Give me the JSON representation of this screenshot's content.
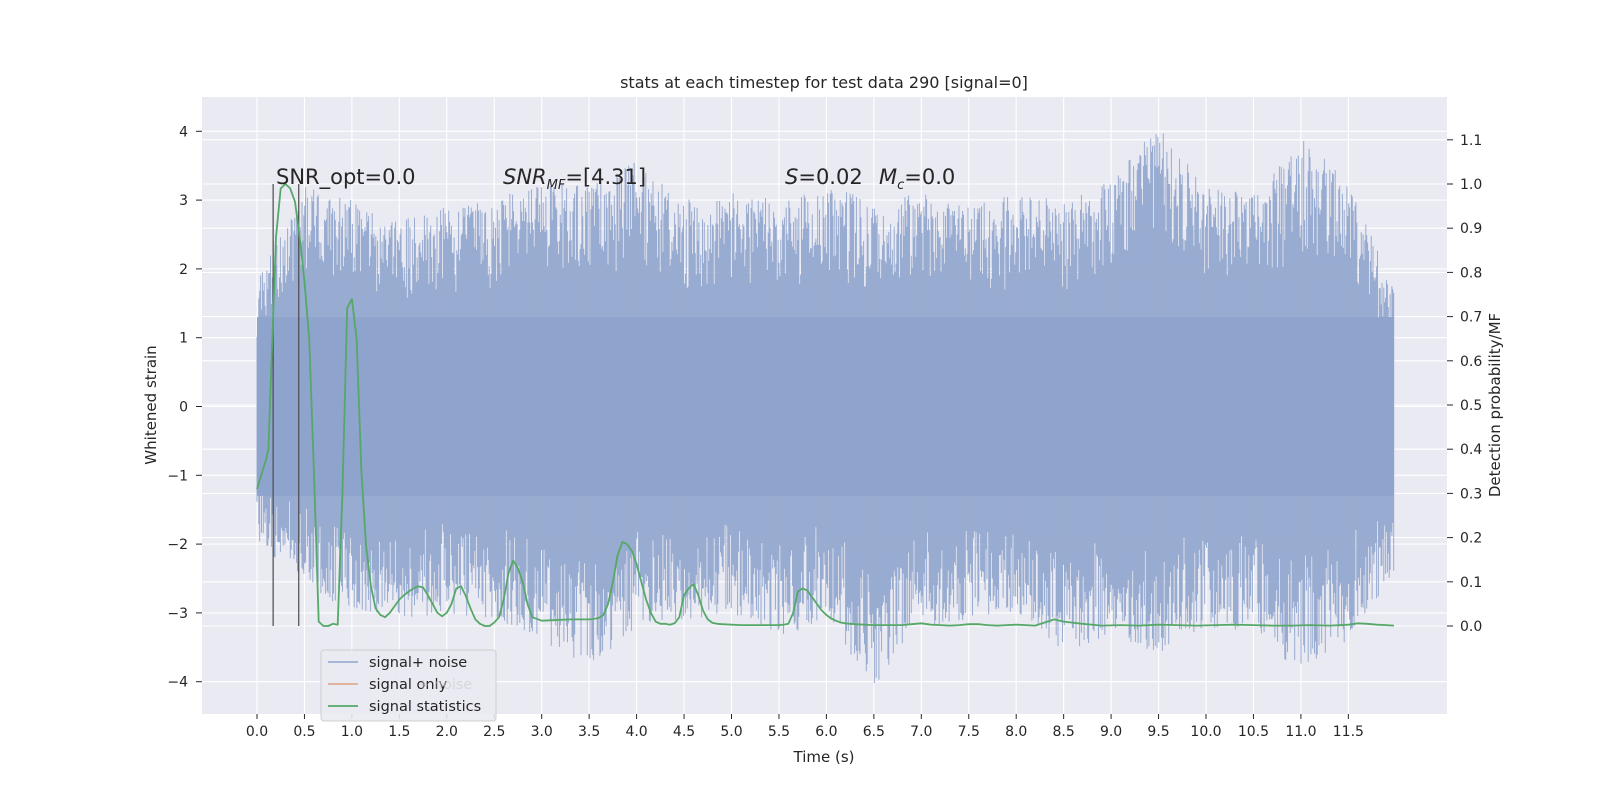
{
  "chart_data": {
    "type": "line",
    "title": "stats at each timestep for test data 290 [signal=0]",
    "xlabel": "Time (s)",
    "ylabel": "Whitened strain",
    "ylabel_right": "Detection probability/MF",
    "xlim": [
      -0.5,
      12.6
    ],
    "ylim_left": [
      -4.45,
      4.45
    ],
    "ylim_right": [
      -0.2,
      1.19
    ],
    "x_ticks": [
      "0.0",
      "0.5",
      "1.0",
      "1.5",
      "2.0",
      "2.5",
      "3.0",
      "3.5",
      "4.0",
      "4.5",
      "5.0",
      "5.5",
      "6.0",
      "6.5",
      "7.0",
      "7.5",
      "8.0",
      "8.5",
      "9.0",
      "9.5",
      "10.0",
      "10.5",
      "11.0",
      "11.5"
    ],
    "y_ticks_left": [
      "4",
      "3",
      "2",
      "1",
      "0",
      "−1",
      "−2",
      "−3",
      "−4"
    ],
    "y_ticks_right": [
      "1.1",
      "1.0",
      "0.9",
      "0.8",
      "0.7",
      "0.6",
      "0.5",
      "0.4",
      "0.3",
      "0.2",
      "0.1",
      "0.0"
    ],
    "grid": true,
    "annotations": {
      "snr_opt": "SNR_opt=0.0",
      "snr_mf_sym": "SNR",
      "snr_mf_sub": "MF",
      "snr_mf_val": "=[4.31]",
      "s_sym": "S",
      "s_val": "=0.02",
      "mc_sym": "M",
      "mc_sub": "c",
      "mc_val": "=0.0"
    },
    "vertical_markers": [
      0.17,
      0.44
    ],
    "series": [
      {
        "name": "signal+ noise",
        "color": "#8fa4cc",
        "description_range": [
          0.0,
          11.98
        ],
        "envelope": {
          "x": [
            0.0,
            0.5,
            1.0,
            1.5,
            2.0,
            2.5,
            3.0,
            3.5,
            4.0,
            4.5,
            5.0,
            5.5,
            6.0,
            6.5,
            7.0,
            7.5,
            8.0,
            8.5,
            9.0,
            9.5,
            10.0,
            10.5,
            11.0,
            11.5,
            11.98
          ],
          "upper": [
            1.8,
            3.2,
            3.0,
            2.7,
            2.9,
            3.0,
            3.3,
            3.2,
            3.6,
            3.0,
            3.1,
            3.0,
            3.2,
            3.0,
            3.1,
            2.9,
            3.1,
            3.0,
            3.3,
            4.1,
            3.2,
            3.1,
            3.9,
            3.3,
            1.7
          ],
          "lower": [
            -2.0,
            -2.6,
            -3.0,
            -3.1,
            -3.0,
            -3.1,
            -3.4,
            -3.8,
            -3.2,
            -3.1,
            -3.0,
            -3.4,
            -3.1,
            -4.1,
            -3.2,
            -3.1,
            -3.0,
            -3.6,
            -3.3,
            -3.6,
            -3.2,
            -3.3,
            -3.9,
            -3.4,
            -2.5
          ]
        }
      },
      {
        "name": "signal only",
        "color": "#dd8452"
      },
      {
        "name": "signal statistics",
        "color": "#55a868",
        "x": [
          0.0,
          0.1,
          0.12,
          0.15,
          0.2,
          0.25,
          0.3,
          0.35,
          0.4,
          0.45,
          0.5,
          0.55,
          0.6,
          0.65,
          0.7,
          0.75,
          0.8,
          0.85,
          0.9,
          0.95,
          1.0,
          1.05,
          1.1,
          1.15,
          1.2,
          1.25,
          1.3,
          1.35,
          1.4,
          1.45,
          1.5,
          1.55,
          1.6,
          1.65,
          1.7,
          1.75,
          1.8,
          1.85,
          1.9,
          1.95,
          2.0,
          2.05,
          2.1,
          2.15,
          2.2,
          2.25,
          2.3,
          2.35,
          2.4,
          2.45,
          2.5,
          2.55,
          2.6,
          2.65,
          2.7,
          2.75,
          2.8,
          2.85,
          2.9,
          3.0,
          3.1,
          3.2,
          3.3,
          3.4,
          3.5,
          3.55,
          3.6,
          3.65,
          3.7,
          3.75,
          3.8,
          3.85,
          3.9,
          3.95,
          4.0,
          4.05,
          4.1,
          4.15,
          4.2,
          4.25,
          4.3,
          4.35,
          4.4,
          4.45,
          4.5,
          4.55,
          4.6,
          4.65,
          4.7,
          4.75,
          4.8,
          4.85,
          4.9,
          5.0,
          5.1,
          5.2,
          5.3,
          5.4,
          5.5,
          5.55,
          5.6,
          5.65,
          5.7,
          5.75,
          5.8,
          5.85,
          5.9,
          5.95,
          6.0,
          6.05,
          6.1,
          6.15,
          6.2,
          6.25,
          6.3,
          6.4,
          6.5,
          6.6,
          6.7,
          6.8,
          6.9,
          7.0,
          7.1,
          7.2,
          7.3,
          7.4,
          7.5,
          7.6,
          7.7,
          7.8,
          7.9,
          8.0,
          8.1,
          8.2,
          8.3,
          8.4,
          8.5,
          8.7,
          8.9,
          9.1,
          9.3,
          9.5,
          9.7,
          9.9,
          10.1,
          10.3,
          10.5,
          10.7,
          10.9,
          11.1,
          11.3,
          11.5,
          11.6,
          11.7,
          11.8,
          11.9,
          11.98
        ],
        "values": [
          0.31,
          0.38,
          0.4,
          0.58,
          0.88,
          0.99,
          1.0,
          0.99,
          0.96,
          0.88,
          0.78,
          0.65,
          0.35,
          0.01,
          0.0,
          0.0,
          0.005,
          0.003,
          0.3,
          0.72,
          0.74,
          0.65,
          0.35,
          0.18,
          0.09,
          0.04,
          0.025,
          0.02,
          0.03,
          0.045,
          0.06,
          0.07,
          0.078,
          0.085,
          0.09,
          0.087,
          0.07,
          0.05,
          0.03,
          0.022,
          0.03,
          0.05,
          0.085,
          0.09,
          0.068,
          0.04,
          0.015,
          0.005,
          0.0,
          0.0,
          0.008,
          0.02,
          0.06,
          0.12,
          0.148,
          0.13,
          0.1,
          0.05,
          0.02,
          0.012,
          0.013,
          0.014,
          0.015,
          0.015,
          0.015,
          0.016,
          0.018,
          0.025,
          0.05,
          0.1,
          0.16,
          0.19,
          0.185,
          0.17,
          0.14,
          0.1,
          0.06,
          0.03,
          0.01,
          0.005,
          0.005,
          0.003,
          0.006,
          0.02,
          0.07,
          0.085,
          0.095,
          0.07,
          0.035,
          0.015,
          0.007,
          0.005,
          0.004,
          0.003,
          0.002,
          0.002,
          0.002,
          0.002,
          0.002,
          0.003,
          0.005,
          0.03,
          0.078,
          0.085,
          0.08,
          0.065,
          0.05,
          0.035,
          0.025,
          0.017,
          0.012,
          0.008,
          0.006,
          0.005,
          0.004,
          0.003,
          0.002,
          0.002,
          0.002,
          0.002,
          0.004,
          0.006,
          0.003,
          0.002,
          0.001,
          0.002,
          0.004,
          0.004,
          0.002,
          0.001,
          0.002,
          0.003,
          0.002,
          0.001,
          0.008,
          0.015,
          0.01,
          0.005,
          0.001,
          0.002,
          0.001,
          0.003,
          0.002,
          0.001,
          0.002,
          0.003,
          0.002,
          0.001,
          0.001,
          0.002,
          0.001,
          0.003,
          0.006,
          0.005,
          0.003,
          0.002,
          0.001
        ]
      }
    ],
    "legend": {
      "placement": "lower left",
      "entries": [
        "signal+ noise",
        "signal only",
        "signal statistics"
      ],
      "ghost_text": "+ noise"
    }
  }
}
